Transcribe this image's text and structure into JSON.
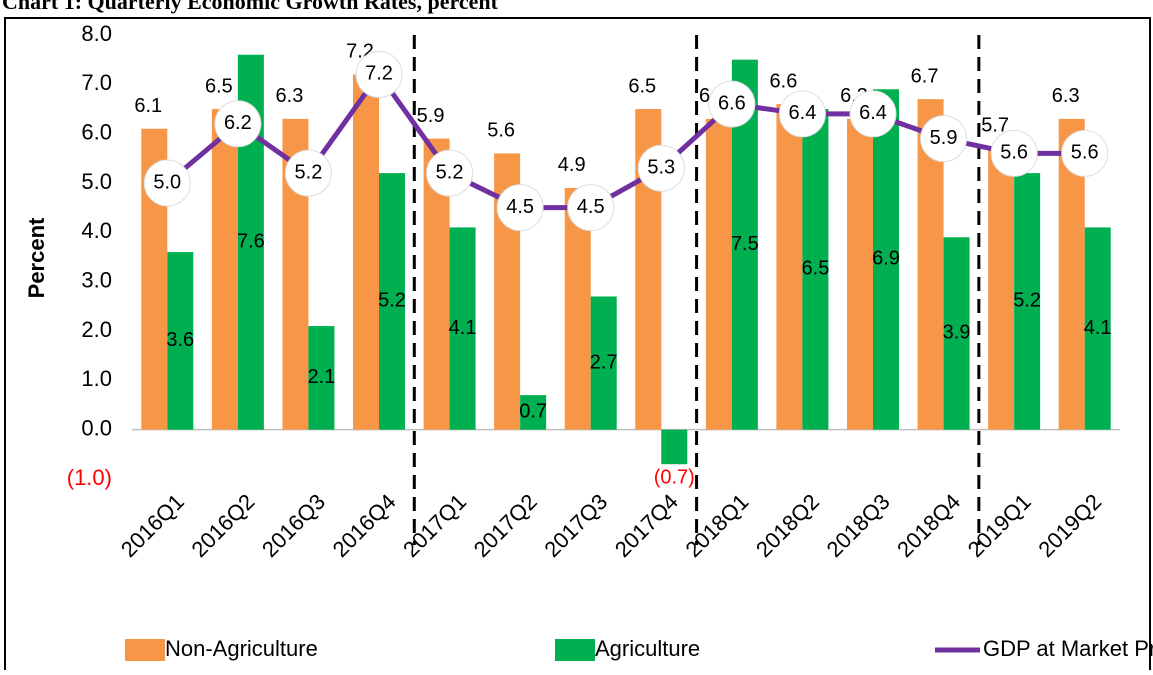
{
  "chart_data": {
    "type": "bar",
    "title": "Chart 1: Quarterly Economic Growth Rates, percent",
    "y_label": "Percent",
    "categories": [
      "2016Q1",
      "2016Q2",
      "2016Q3",
      "2016Q4",
      "2017Q1",
      "2017Q2",
      "2017Q3",
      "2017Q4",
      "2018Q1",
      "2018Q2",
      "2018Q3",
      "2018Q4",
      "2019Q1",
      "2019Q2"
    ],
    "series": [
      {
        "name": "Non-Agriculture",
        "color": "#f79646",
        "values": [
          6.1,
          6.5,
          6.3,
          7.2,
          5.9,
          5.6,
          4.9,
          6.5,
          6.3,
          6.6,
          6.3,
          6.7,
          5.7,
          6.3
        ]
      },
      {
        "name": "Agriculture",
        "color": "#00b050",
        "values": [
          3.6,
          7.6,
          2.1,
          5.2,
          4.1,
          0.7,
          2.7,
          -0.7,
          7.5,
          6.5,
          6.9,
          3.9,
          5.2,
          4.1
        ],
        "value_labels": [
          "3.6",
          "7.6",
          "2.1",
          "5.2",
          "4.1",
          "0.7",
          "2.7",
          "(0.7)",
          "7.5",
          "6.5",
          "6.9",
          "3.9",
          "5.2",
          "4.1"
        ]
      },
      {
        "name": "GDP at Market Prices",
        "type": "line",
        "color": "#7030a0",
        "values": [
          5.0,
          6.2,
          5.2,
          7.2,
          5.2,
          4.5,
          4.5,
          5.3,
          6.6,
          6.4,
          6.4,
          5.9,
          5.6,
          5.6
        ],
        "value_labels": [
          "5.0",
          "6.2",
          "5.2",
          "7.2",
          "5.2",
          "4.5",
          "4.5",
          "5.3",
          "6.6",
          "6.4",
          "6.4",
          "5.9",
          "5.6",
          "5.6"
        ]
      }
    ],
    "ylim": [
      -1,
      8
    ],
    "yticks": [
      {
        "value": -1,
        "label": "(1.0)"
      },
      {
        "value": 0,
        "label": "0.0"
      },
      {
        "value": 1,
        "label": "1.0"
      },
      {
        "value": 2,
        "label": "2.0"
      },
      {
        "value": 3,
        "label": "3.0"
      },
      {
        "value": 4,
        "label": "4.0"
      },
      {
        "value": 5,
        "label": "5.0"
      },
      {
        "value": 6,
        "label": "6.0"
      },
      {
        "value": 7,
        "label": "7.0"
      },
      {
        "value": 8,
        "label": "8.0"
      }
    ],
    "negative_color": "#ff0000",
    "legend": "bottom"
  }
}
